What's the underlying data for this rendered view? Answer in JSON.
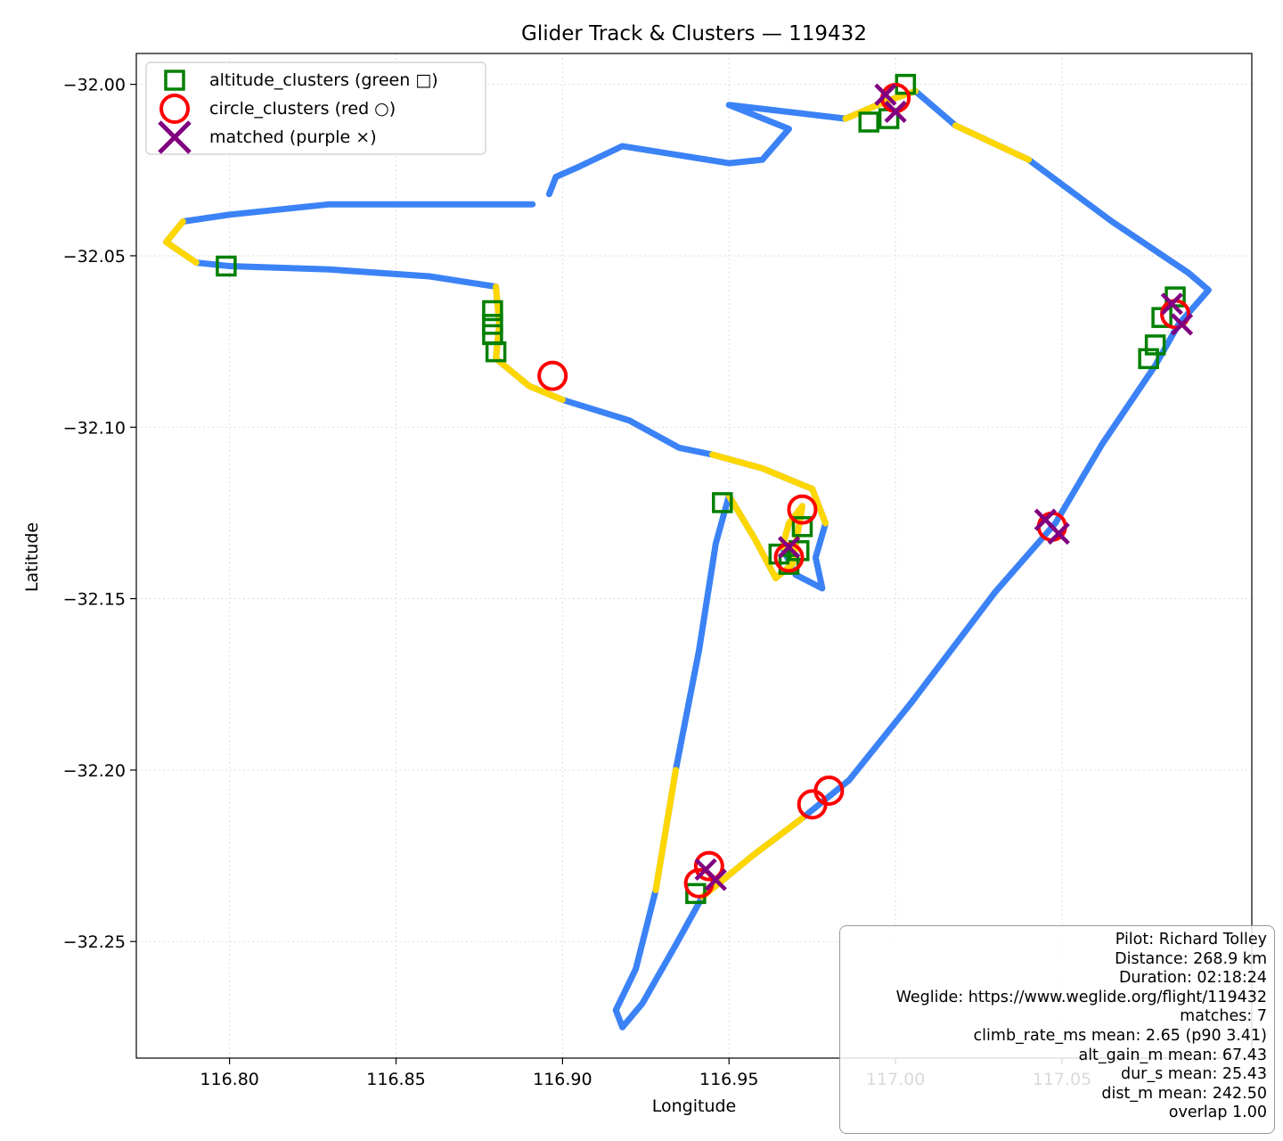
{
  "chart_data": {
    "type": "scatter",
    "title": "Glider Track & Clusters — 119432",
    "xlabel": "Longitude",
    "ylabel": "Latitude",
    "xlim": [
      116.772,
      117.107
    ],
    "ylim": [
      -32.284,
      -31.991
    ],
    "x_ticks": [
      116.8,
      116.85,
      116.9,
      116.95,
      117.0,
      117.05
    ],
    "x_tick_labels": [
      "116.80",
      "116.85",
      "116.90",
      "116.95",
      "117.00",
      "117.05"
    ],
    "y_ticks": [
      -32.0,
      -32.05,
      -32.1,
      -32.15,
      -32.2,
      -32.25
    ],
    "y_tick_labels": [
      "−32.00",
      "−32.05",
      "−32.10",
      "−32.15",
      "−32.20",
      "−32.25"
    ],
    "grid": true,
    "legend_position": "top-left",
    "legend": [
      {
        "label": "altitude_clusters (green □)",
        "marker": "square",
        "color": "#008000"
      },
      {
        "label": "circle_clusters (red ○)",
        "marker": "circle",
        "color": "#ff0000"
      },
      {
        "label": "matched (purple ×)",
        "marker": "x",
        "color": "#800080"
      }
    ],
    "track_colors": {
      "cruise": "#3b82f6",
      "climb": "#ffd700"
    },
    "track": [
      [
        116.891,
        -32.035
      ],
      [
        116.86,
        -32.035
      ],
      [
        116.83,
        -32.035
      ],
      [
        116.8,
        -32.038
      ],
      [
        116.786,
        -32.04
      ],
      [
        116.781,
        -32.046
      ],
      [
        116.79,
        -32.052
      ],
      [
        116.8,
        -32.053
      ],
      [
        116.83,
        -32.054
      ],
      [
        116.86,
        -32.056
      ],
      [
        116.88,
        -32.059
      ],
      [
        116.881,
        -32.07
      ],
      [
        116.88,
        -32.08
      ],
      [
        116.89,
        -32.088
      ],
      [
        116.9,
        -32.092
      ],
      [
        116.92,
        -32.098
      ],
      [
        116.935,
        -32.106
      ],
      [
        116.945,
        -32.108
      ],
      [
        116.96,
        -32.112
      ],
      [
        116.975,
        -32.118
      ],
      [
        116.979,
        -32.128
      ],
      [
        116.976,
        -32.138
      ],
      [
        116.978,
        -32.147
      ],
      [
        116.97,
        -32.143
      ],
      [
        116.966,
        -32.135
      ],
      [
        116.968,
        -32.128
      ],
      [
        116.972,
        -32.123
      ],
      [
        116.969,
        -32.14
      ],
      [
        116.964,
        -32.144
      ],
      [
        116.958,
        -32.133
      ],
      [
        116.95,
        -32.12
      ],
      [
        116.946,
        -32.134
      ],
      [
        116.941,
        -32.165
      ],
      [
        116.934,
        -32.2
      ],
      [
        116.928,
        -32.235
      ],
      [
        116.922,
        -32.258
      ],
      [
        116.916,
        -32.27
      ],
      [
        116.918,
        -32.275
      ],
      [
        116.924,
        -32.268
      ],
      [
        116.934,
        -32.251
      ],
      [
        116.942,
        -32.237
      ],
      [
        116.957,
        -32.225
      ],
      [
        116.972,
        -32.214
      ],
      [
        116.986,
        -32.203
      ],
      [
        117.005,
        -32.18
      ],
      [
        117.03,
        -32.148
      ],
      [
        117.048,
        -32.128
      ],
      [
        117.062,
        -32.105
      ],
      [
        117.078,
        -32.082
      ],
      [
        117.085,
        -32.07
      ],
      [
        117.094,
        -32.06
      ],
      [
        117.088,
        -32.055
      ],
      [
        117.065,
        -32.04
      ],
      [
        117.04,
        -32.022
      ],
      [
        117.018,
        -32.012
      ],
      [
        117.006,
        -32.002
      ],
      [
        116.997,
        -32.005
      ],
      [
        116.985,
        -32.01
      ],
      [
        116.95,
        -32.006
      ],
      [
        116.968,
        -32.013
      ],
      [
        116.96,
        -32.022
      ],
      [
        116.95,
        -32.023
      ],
      [
        116.918,
        -32.018
      ],
      [
        116.905,
        -32.024
      ],
      [
        116.898,
        -32.027
      ],
      [
        116.896,
        -32.032
      ]
    ],
    "climb_segments": [
      [
        4,
        6
      ],
      [
        10,
        14
      ],
      [
        17,
        20
      ],
      [
        24,
        30
      ],
      [
        33,
        34
      ],
      [
        40,
        42
      ],
      [
        53,
        54
      ],
      [
        55,
        57
      ]
    ],
    "altitude_clusters": [
      [
        117.003,
        -32.0
      ],
      [
        116.998,
        -32.01
      ],
      [
        116.992,
        -32.011
      ],
      [
        116.799,
        -32.053
      ],
      [
        116.879,
        -32.066
      ],
      [
        116.879,
        -32.07
      ],
      [
        116.879,
        -32.073
      ],
      [
        116.88,
        -32.078
      ],
      [
        116.948,
        -32.122
      ],
      [
        116.965,
        -32.137
      ],
      [
        116.968,
        -32.14
      ],
      [
        116.971,
        -32.136
      ],
      [
        116.972,
        -32.129
      ],
      [
        117.084,
        -32.062
      ],
      [
        117.08,
        -32.068
      ],
      [
        117.078,
        -32.076
      ],
      [
        117.076,
        -32.08
      ],
      [
        116.94,
        -32.236
      ]
    ],
    "circle_clusters": [
      [
        117.0,
        -32.004
      ],
      [
        116.897,
        -32.085
      ],
      [
        116.972,
        -32.124
      ],
      [
        116.968,
        -32.138
      ],
      [
        117.084,
        -32.067
      ],
      [
        117.047,
        -32.129
      ],
      [
        116.98,
        -32.206
      ],
      [
        116.975,
        -32.21
      ],
      [
        116.944,
        -32.228
      ],
      [
        116.941,
        -32.233
      ]
    ],
    "matched": [
      [
        116.997,
        -32.003
      ],
      [
        117.0,
        -32.008
      ],
      [
        117.083,
        -32.064
      ],
      [
        117.086,
        -32.07
      ],
      [
        117.045,
        -32.127
      ],
      [
        117.049,
        -32.131
      ],
      [
        116.943,
        -32.229
      ],
      [
        116.946,
        -32.232
      ],
      [
        116.968,
        -32.135
      ]
    ]
  },
  "info_box": {
    "lines": [
      "Pilot: Richard Tolley",
      "Distance: 268.9 km",
      "Duration: 02:18:24",
      "Weglide: https://www.weglide.org/flight/119432",
      "matches: 7",
      "climb_rate_ms mean: 2.65 (p90 3.41)",
      "alt_gain_m mean: 67.43",
      "dur_s mean: 25.43",
      "dist_m mean: 242.50",
      "overlap 1.00"
    ]
  }
}
